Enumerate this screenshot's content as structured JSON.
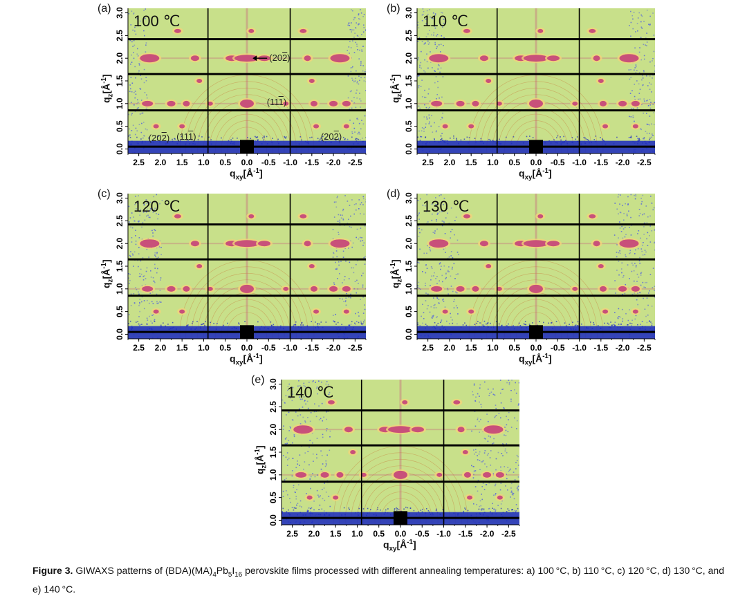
{
  "panels": [
    {
      "id": "a",
      "label": "(a)",
      "temperature": "100 ℃"
    },
    {
      "id": "b",
      "label": "(b)",
      "temperature": "110 ℃"
    },
    {
      "id": "c",
      "label": "(c)",
      "temperature": "120 ℃"
    },
    {
      "id": "d",
      "label": "(d)",
      "temperature": "130 ℃"
    },
    {
      "id": "e",
      "label": "(e)",
      "temperature": "140 ℃"
    }
  ],
  "axes": {
    "y_label_main": "q",
    "y_label_sub": "z",
    "y_label_unit": "[Å",
    "y_label_unit_sup": "-1",
    "y_label_close": "]",
    "x_label_main": "q",
    "x_label_sub": "xy",
    "x_label_unit": "[Å",
    "x_label_unit_sup": "-1",
    "x_label_close": "]",
    "y_ticks": [
      "0.0",
      "0.5",
      "1.0",
      "1.5",
      "2.0",
      "2.5",
      "3.0"
    ],
    "x_ticks": [
      "2.5",
      "2.0",
      "1.5",
      "1.0",
      "0.5",
      "0.0",
      "-0.5",
      "-1.0",
      "-1.5",
      "-2.0",
      "-2.5"
    ],
    "y_range": [
      -0.1,
      3.1
    ],
    "x_range": [
      2.75,
      -2.75
    ],
    "h_lines_q": [
      0.05,
      0.85,
      1.65,
      2.42
    ],
    "v_lines_q": [
      0.9,
      -1.0
    ]
  },
  "annotations_panel_a": [
    {
      "text": "(202)",
      "overbar": "2"
    },
    {
      "text": "(111)",
      "overbar": "1"
    },
    {
      "text": "(202)",
      "overbar": "2"
    },
    {
      "text": "(111)",
      "overbar": "1"
    },
    {
      "text": "(202)",
      "overbar": "2"
    }
  ],
  "caption": {
    "figure_label": "Figure 3.",
    "text_part1": " GIWAXS patterns of (BDA)(MA)",
    "sub1": "4",
    "text_part2": "Pb",
    "sub2": "5",
    "text_part3": "I",
    "sub3": "16",
    "text_part4": " perovskite films processed with different annealing temperatures: a) 100 °C, b) 110 °C, c) 120 °C, d) 130 °C, and e) 140 °C."
  },
  "colors": {
    "background_green": "#c8e08a",
    "ring_orange": "#e8b866",
    "spot_magenta": "#c8507a",
    "spot_yellow": "#f2d37a",
    "beamstop_blue": "#1a28c0",
    "noise_blue": "#5a6ad8",
    "grid_black": "#000000"
  }
}
